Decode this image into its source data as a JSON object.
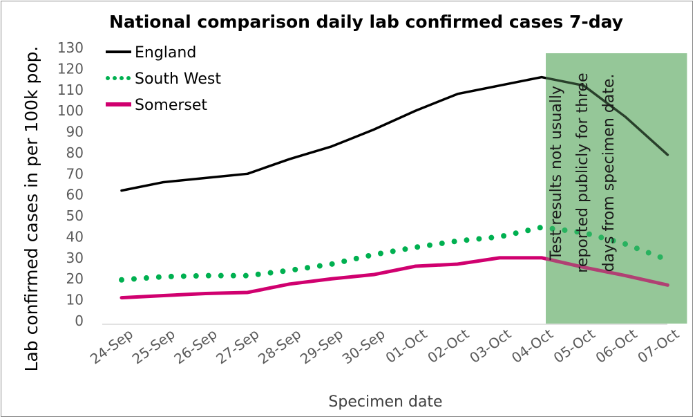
{
  "chart_data": {
    "type": "line",
    "title": "National comparison daily lab confirmed cases 7-day",
    "xlabel": "Specimen date",
    "ylabel": "Lab confirmed cases in per 100k pop.",
    "categories": [
      "24-Sep",
      "25-Sep",
      "26-Sep",
      "27-Sep",
      "28-Sep",
      "29-Sep",
      "30-Sep",
      "01-Oct",
      "02-Oct",
      "03-Oct",
      "04-Oct",
      "05-Oct",
      "06-Oct",
      "07-Oct"
    ],
    "ylim": [
      0,
      130
    ],
    "yticks": [
      0,
      10,
      20,
      30,
      40,
      50,
      60,
      70,
      80,
      90,
      100,
      110,
      120,
      130
    ],
    "grid": false,
    "legend_position": "top-left",
    "series": [
      {
        "name": "England",
        "color": "#000000",
        "style": "solid",
        "values": [
          62,
          66,
          68,
          70,
          77,
          83,
          91,
          100,
          108,
          112,
          116,
          112,
          97,
          79
        ]
      },
      {
        "name": "South West",
        "color": "#00b050",
        "style": "dotted",
        "values": [
          19.5,
          21,
          21.5,
          21.5,
          24,
          27,
          31.5,
          35,
          38,
          40,
          44.5,
          42,
          36.5,
          29
        ]
      },
      {
        "name": "Somerset",
        "color": "#d0006f",
        "style": "solid",
        "values": [
          11,
          12,
          13,
          13.5,
          17.5,
          20,
          22,
          26,
          27,
          30,
          30,
          25.5,
          21.5,
          17
        ]
      }
    ],
    "shaded_region": {
      "from": "04-Oct",
      "to": "07-Oct",
      "color": "#76b77a",
      "label": "Test results not usually reported publicly for three days from specimen date."
    },
    "annotation_lines": [
      "Test results not usually",
      "reported publicly for three",
      "days from specimen date."
    ]
  }
}
